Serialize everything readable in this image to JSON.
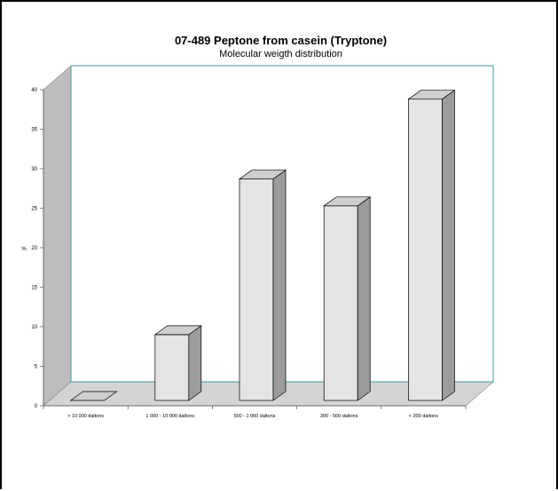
{
  "chart_data": {
    "type": "bar",
    "title": "07-489 Peptone from casein (Tryptone)",
    "subtitle": "Molecular weigth distribution",
    "xlabel": "",
    "ylabel": "%",
    "categories": [
      "> 10 000 daltons",
      "1 000 - 10 000 daltons",
      "500 - 1 000 daltons",
      "300 - 500 daltons",
      "< 300 daltons"
    ],
    "values": [
      0,
      9,
      28.7,
      25.3,
      38.8
    ],
    "ylim": [
      0,
      40
    ],
    "yticks": [
      0,
      5,
      10,
      15,
      20,
      25,
      30,
      35,
      40
    ],
    "grid": false,
    "style": "3d",
    "colors": {
      "bar_front": "#e4e4e4",
      "bar_top": "#cfcfcf",
      "bar_side": "#9c9c9c",
      "wall_left": "#bdbdbd",
      "floor": "#d4d4d4",
      "plot_border": "#3a9ea2"
    }
  }
}
